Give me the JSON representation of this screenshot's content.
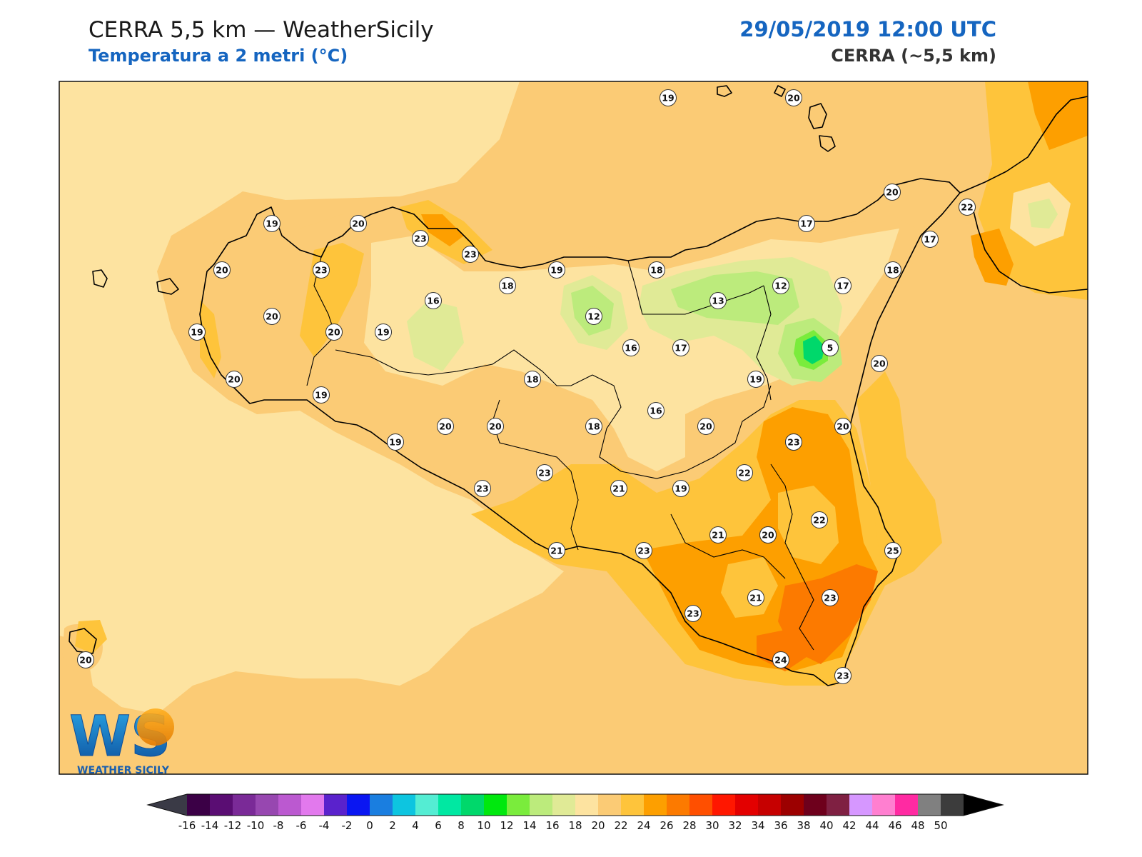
{
  "header": {
    "title": "CERRA 5,5 km — WeatherSicily",
    "subtitle": "Temperatura a 2 metri (°C)",
    "datetime": "29/05/2019 12:00 UTC",
    "model": "CERRA (~5,5 km)"
  },
  "logo": {
    "letters": "WS",
    "name": "WEATHER SICILY"
  },
  "colors": {
    "frame": "#111111",
    "sea_background": "#fbcb75",
    "title_blue": "#1565c0",
    "coastline": "#000000"
  },
  "colorbar": {
    "ticks": [
      "-16",
      "-14",
      "-12",
      "-10",
      "-8",
      "-6",
      "-4",
      "-2",
      "0",
      "2",
      "4",
      "6",
      "8",
      "10",
      "12",
      "14",
      "16",
      "18",
      "20",
      "22",
      "24",
      "26",
      "28",
      "30",
      "32",
      "34",
      "36",
      "38",
      "40",
      "42",
      "44",
      "46",
      "48",
      "50"
    ],
    "colors": [
      "#3b0046",
      "#5a0d73",
      "#7a2a97",
      "#9747b0",
      "#bb59d0",
      "#e279ed",
      "#5a22cc",
      "#0a16f2",
      "#1a7ee0",
      "#0dc5e0",
      "#54edd3",
      "#00e8a2",
      "#00d86b",
      "#00e80e",
      "#7aec3c",
      "#bceb7c",
      "#e0ea96",
      "#fde3a0",
      "#fbcb75",
      "#fec43b",
      "#fd9f00",
      "#fc7a00",
      "#ff4f00",
      "#ff1700",
      "#e30000",
      "#c60000",
      "#9c0000",
      "#6e001c",
      "#7f2042",
      "#d697ff",
      "#ff7fd0",
      "#ff2aa2",
      "#808080",
      "#3c3c3c"
    ],
    "extend_min_color": "#3a3a46",
    "extend_max_color": "#000000"
  },
  "map": {
    "station_values": [
      {
        "id": "s1",
        "v": "19"
      },
      {
        "id": "s2",
        "v": "20"
      },
      {
        "id": "s3",
        "v": "20"
      },
      {
        "id": "s4",
        "v": "22"
      },
      {
        "id": "s5",
        "v": "17"
      },
      {
        "id": "s6",
        "v": "17"
      },
      {
        "id": "s7",
        "v": "19"
      },
      {
        "id": "s8",
        "v": "20"
      },
      {
        "id": "s9",
        "v": "23"
      },
      {
        "id": "s10",
        "v": "23"
      },
      {
        "id": "s11",
        "v": "18"
      },
      {
        "id": "s12",
        "v": "19"
      },
      {
        "id": "s13",
        "v": "18"
      },
      {
        "id": "s14",
        "v": "12"
      },
      {
        "id": "s15",
        "v": "17"
      },
      {
        "id": "s16",
        "v": "18"
      },
      {
        "id": "s17",
        "v": "20"
      },
      {
        "id": "s18",
        "v": "23"
      },
      {
        "id": "s19",
        "v": "20"
      },
      {
        "id": "s20",
        "v": "16"
      },
      {
        "id": "s21",
        "v": "12"
      },
      {
        "id": "s22",
        "v": "13"
      },
      {
        "id": "s23",
        "v": "19"
      },
      {
        "id": "s24",
        "v": "20"
      },
      {
        "id": "s25",
        "v": "19"
      },
      {
        "id": "s26",
        "v": "16"
      },
      {
        "id": "s27",
        "v": "17"
      },
      {
        "id": "s28",
        "v": "5"
      },
      {
        "id": "s29",
        "v": "20"
      },
      {
        "id": "s30",
        "v": "20"
      },
      {
        "id": "s31",
        "v": "19"
      },
      {
        "id": "s32",
        "v": "18"
      },
      {
        "id": "s33",
        "v": "19"
      },
      {
        "id": "s34",
        "v": "16"
      },
      {
        "id": "s35",
        "v": "20"
      },
      {
        "id": "s36",
        "v": "20"
      },
      {
        "id": "s37",
        "v": "19"
      },
      {
        "id": "s38",
        "v": "20"
      },
      {
        "id": "s39",
        "v": "20"
      },
      {
        "id": "s40",
        "v": "18"
      },
      {
        "id": "s41",
        "v": "20"
      },
      {
        "id": "s42",
        "v": "23"
      },
      {
        "id": "s43",
        "v": "23"
      },
      {
        "id": "s44",
        "v": "23"
      },
      {
        "id": "s45",
        "v": "22"
      },
      {
        "id": "s46",
        "v": "21"
      },
      {
        "id": "s47",
        "v": "19"
      },
      {
        "id": "s48",
        "v": "20"
      },
      {
        "id": "s49",
        "v": "22"
      },
      {
        "id": "s50",
        "v": "21"
      },
      {
        "id": "s51",
        "v": "20"
      },
      {
        "id": "s52",
        "v": "21"
      },
      {
        "id": "s53",
        "v": "23"
      },
      {
        "id": "s54",
        "v": "25"
      },
      {
        "id": "s55",
        "v": "21"
      },
      {
        "id": "s56",
        "v": "23"
      },
      {
        "id": "s57",
        "v": "23"
      },
      {
        "id": "s58",
        "v": "24"
      },
      {
        "id": "s59",
        "v": "23"
      },
      {
        "id": "s60",
        "v": "20"
      }
    ]
  }
}
